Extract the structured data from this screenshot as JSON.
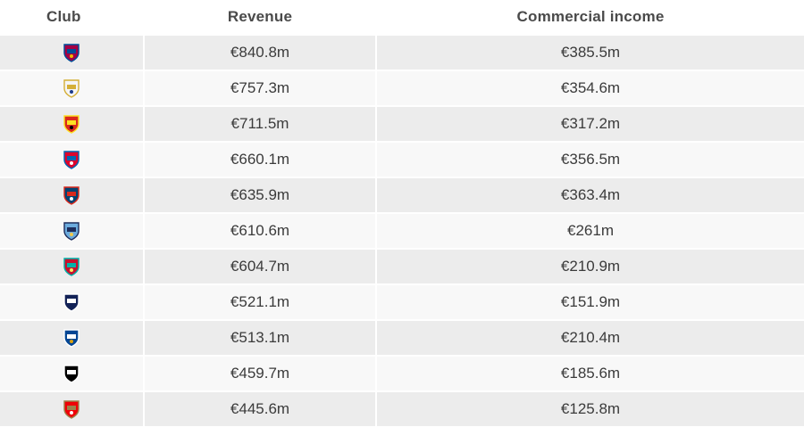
{
  "headers": {
    "club": "Club",
    "revenue": "Revenue",
    "commercial": "Commercial income"
  },
  "chart_data": {
    "type": "table",
    "columns": [
      "Club",
      "Revenue",
      "Commercial income"
    ],
    "rows": [
      {
        "crest": "barcelona-crest-icon",
        "revenue": "€840.8m",
        "commercial": "€385.5m",
        "colors": [
          "#a50044",
          "#004d98",
          "#edbb00"
        ]
      },
      {
        "crest": "real-madrid-crest-icon",
        "revenue": "€757.3m",
        "commercial": "€354.6m",
        "colors": [
          "#f5f5f5",
          "#d4af37",
          "#1b3a8c"
        ]
      },
      {
        "crest": "manchester-united-crest-icon",
        "revenue": "€711.5m",
        "commercial": "€317.2m",
        "colors": [
          "#da291c",
          "#fbe122",
          "#000000"
        ]
      },
      {
        "crest": "bayern-munich-crest-icon",
        "revenue": "€660.1m",
        "commercial": "€356.5m",
        "colors": [
          "#dc052d",
          "#0066b2",
          "#ffffff"
        ]
      },
      {
        "crest": "psg-crest-icon",
        "revenue": "€635.9m",
        "commercial": "€363.4m",
        "colors": [
          "#004170",
          "#da291c",
          "#ffffff"
        ]
      },
      {
        "crest": "manchester-city-crest-icon",
        "revenue": "€610.6m",
        "commercial": "€261m",
        "colors": [
          "#6cabdd",
          "#1c2c5b",
          "#f2c94c"
        ]
      },
      {
        "crest": "liverpool-crest-icon",
        "revenue": "€604.7m",
        "commercial": "€210.9m",
        "colors": [
          "#c8102e",
          "#00b2a9",
          "#f6eb61"
        ]
      },
      {
        "crest": "tottenham-crest-icon",
        "revenue": "€521.1m",
        "commercial": "€151.9m",
        "colors": [
          "#132257",
          "#ffffff",
          "#132257"
        ]
      },
      {
        "crest": "chelsea-crest-icon",
        "revenue": "€513.1m",
        "commercial": "€210.4m",
        "colors": [
          "#034694",
          "#ffffff",
          "#dba111"
        ]
      },
      {
        "crest": "juventus-crest-icon",
        "revenue": "€459.7m",
        "commercial": "€185.6m",
        "colors": [
          "#000000",
          "#ffffff",
          "#000000"
        ]
      },
      {
        "crest": "arsenal-crest-icon",
        "revenue": "€445.6m",
        "commercial": "€125.8m",
        "colors": [
          "#ef0107",
          "#9c824a",
          "#ffffff"
        ]
      }
    ]
  }
}
